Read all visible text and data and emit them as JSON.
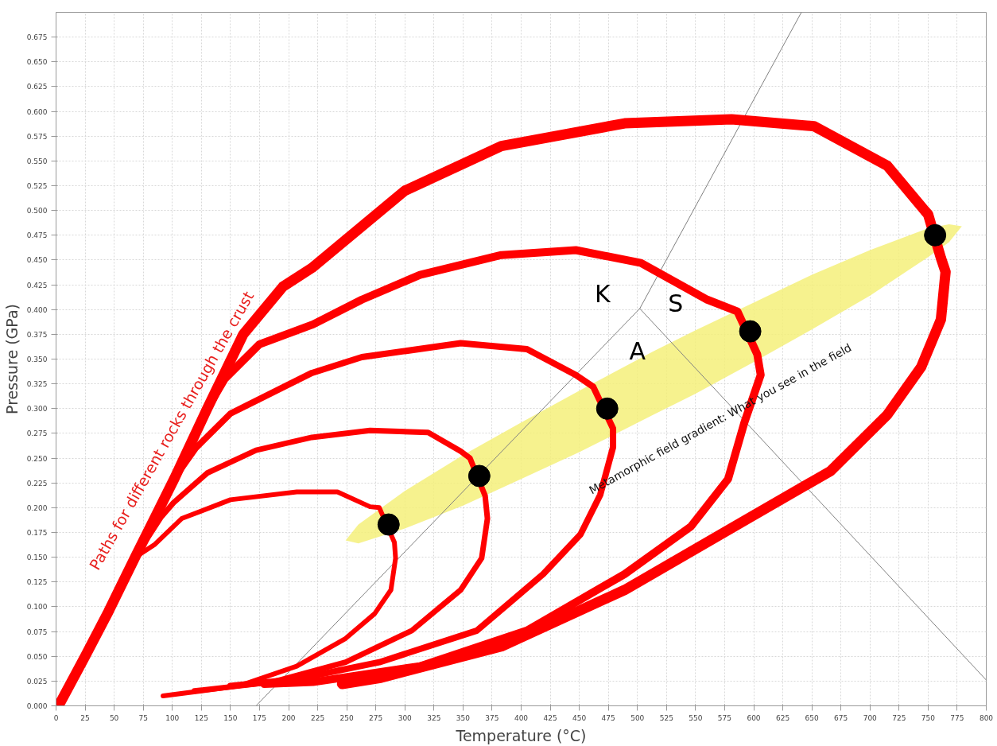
{
  "chart_data": {
    "type": "line",
    "xlabel": "Temperature (°C)",
    "ylabel": "Pressure (GPa)",
    "xlim": [
      0,
      800
    ],
    "ylim": [
      0,
      0.7
    ],
    "xticks": [
      0,
      25,
      50,
      75,
      100,
      125,
      150,
      175,
      200,
      225,
      250,
      275,
      300,
      325,
      350,
      375,
      400,
      425,
      450,
      475,
      500,
      525,
      550,
      575,
      600,
      625,
      650,
      675,
      700,
      725,
      750,
      775,
      800
    ],
    "yticks": [
      {
        "value": 0,
        "label": "0.000"
      },
      {
        "value": 0.025,
        "label": "0.025"
      },
      {
        "value": 0.05,
        "label": "0.050"
      },
      {
        "value": 0.075,
        "label": "0.075"
      },
      {
        "value": 0.1,
        "label": "0.100"
      },
      {
        "value": 0.125,
        "label": "0.125"
      },
      {
        "value": 0.15,
        "label": "0.150"
      },
      {
        "value": 0.175,
        "label": "0.175"
      },
      {
        "value": 0.2,
        "label": "0.200"
      },
      {
        "value": 0.225,
        "label": "0.225"
      },
      {
        "value": 0.25,
        "label": "0.250"
      },
      {
        "value": 0.275,
        "label": "0.275"
      },
      {
        "value": 0.3,
        "label": "0.300"
      },
      {
        "value": 0.325,
        "label": "0.325"
      },
      {
        "value": 0.35,
        "label": "0.350"
      },
      {
        "value": 0.375,
        "label": "0.375"
      },
      {
        "value": 0.4,
        "label": "0.400"
      },
      {
        "value": 0.425,
        "label": "0.425"
      },
      {
        "value": 0.45,
        "label": "0.450"
      },
      {
        "value": 0.475,
        "label": "0.475"
      },
      {
        "value": 0.5,
        "label": "0.500"
      },
      {
        "value": 0.525,
        "label": "0.525"
      },
      {
        "value": 0.55,
        "label": "0.550"
      },
      {
        "value": 0.575,
        "label": "0.575"
      },
      {
        "value": 0.6,
        "label": "0.600"
      },
      {
        "value": 0.625,
        "label": "0.625"
      },
      {
        "value": 0.65,
        "label": "0.650"
      },
      {
        "value": 0.675,
        "label": "0.675"
      }
    ],
    "grid": true,
    "line_style": "solid",
    "series": [
      {
        "type": "area",
        "color": "#f5f07a",
        "x": [
          249,
          260,
          300,
          350,
          400,
          450,
          514,
          550,
          600,
          650,
          700,
          750,
          768,
          779,
          768,
          750,
          700,
          650,
          600,
          550,
          514,
          450,
          400,
          350,
          300,
          260
        ],
        "values": [
          0.167,
          0.183,
          0.217,
          0.253,
          0.286,
          0.318,
          0.358,
          0.379,
          0.407,
          0.435,
          0.46,
          0.482,
          0.486,
          0.484,
          0.468,
          0.453,
          0.414,
          0.38,
          0.347,
          0.315,
          0.294,
          0.256,
          0.229,
          0.202,
          0.179,
          0.164
        ]
      },
      {
        "color": "#808080",
        "x": [
          172,
          502,
          641
        ],
        "values": [
          0,
          0.401,
          0.7
        ]
      },
      {
        "color": "#808080",
        "x": [
          502,
          800
        ],
        "values": [
          0.401,
          0.026
        ]
      },
      {
        "color": "#ff0000",
        "x": [
          4,
          25,
          45,
          68,
          85,
          108,
          150,
          207,
          242,
          270,
          278,
          291,
          292,
          288,
          274,
          249,
          207,
          157,
          92
        ],
        "values": [
          0.004,
          0.05,
          0.095,
          0.15,
          0.163,
          0.189,
          0.208,
          0.216,
          0.216,
          0.201,
          0.2,
          0.165,
          0.149,
          0.117,
          0.093,
          0.068,
          0.04,
          0.02,
          0.01
        ]
      },
      {
        "color": "#ff0000",
        "x": [
          4,
          25,
          45,
          68,
          90,
          101,
          130,
          172,
          220,
          270,
          320,
          348,
          356,
          369,
          371,
          366,
          348,
          306,
          249,
          186,
          119
        ],
        "values": [
          0.004,
          0.05,
          0.095,
          0.15,
          0.19,
          0.205,
          0.235,
          0.258,
          0.271,
          0.278,
          0.276,
          0.257,
          0.25,
          0.212,
          0.189,
          0.149,
          0.117,
          0.076,
          0.044,
          0.024,
          0.015
        ]
      },
      {
        "color": "#ff0000",
        "x": [
          4,
          25,
          45,
          68,
          85,
          102,
          120,
          150,
          220,
          263,
          348,
          405,
          447,
          462,
          479,
          479,
          468,
          451,
          419,
          362,
          278,
          207,
          150
        ],
        "values": [
          0.004,
          0.05,
          0.095,
          0.15,
          0.19,
          0.23,
          0.26,
          0.295,
          0.336,
          0.352,
          0.366,
          0.36,
          0.334,
          0.322,
          0.28,
          0.261,
          0.213,
          0.173,
          0.133,
          0.076,
          0.044,
          0.027,
          0.02
        ]
      },
      {
        "color": "#ff0000",
        "x": [
          4,
          25,
          45,
          68,
          85,
          102,
          130,
          145,
          175,
          221,
          263,
          313,
          383,
          447,
          503,
          560,
          586,
          603,
          606,
          592,
          578,
          546,
          489,
          405,
          313,
          221,
          179
        ],
        "values": [
          0.004,
          0.05,
          0.095,
          0.15,
          0.19,
          0.23,
          0.3,
          0.33,
          0.365,
          0.385,
          0.41,
          0.435,
          0.455,
          0.46,
          0.447,
          0.41,
          0.398,
          0.355,
          0.334,
          0.286,
          0.229,
          0.181,
          0.133,
          0.076,
          0.04,
          0.024,
          0.022
        ]
      },
      {
        "color": "#ff0000",
        "x": [
          4,
          25,
          45,
          68,
          85,
          102,
          130,
          161,
          195,
          220,
          300,
          383,
          489,
          581,
          652,
          715,
          747,
          750,
          761,
          765,
          761,
          744,
          715,
          666,
          595,
          489,
          383,
          278,
          246
        ],
        "values": [
          0.004,
          0.05,
          0.095,
          0.15,
          0.19,
          0.23,
          0.3,
          0.375,
          0.423,
          0.442,
          0.52,
          0.565,
          0.588,
          0.592,
          0.585,
          0.545,
          0.5,
          0.496,
          0.452,
          0.438,
          0.39,
          0.342,
          0.294,
          0.237,
          0.189,
          0.117,
          0.06,
          0.028,
          0.022
        ]
      },
      {
        "type": "scatter",
        "color": "#000000",
        "marker": "circle",
        "x": [
          286,
          364,
          474,
          597,
          756
        ],
        "values": [
          0.183,
          0.232,
          0.3,
          0.378,
          0.475
        ]
      }
    ],
    "annotations": [
      "Paths for different rocks through the crust",
      "Metamorphic field gradient: What you see in the field",
      "K",
      "S",
      "A"
    ]
  }
}
